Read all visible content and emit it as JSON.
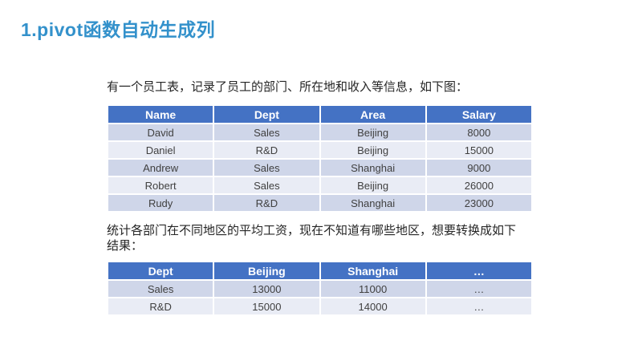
{
  "slide": {
    "title": "1.pivot函数自动生成列",
    "title_color": "#3391cb"
  },
  "intro1": {
    "text": "有一个员工表，记录了员工的部门、所在地和收入等信息，如下图："
  },
  "employee_table": {
    "headers": [
      "Name",
      "Dept",
      "Area",
      "Salary"
    ],
    "rows": [
      [
        "David",
        "Sales",
        "Beijing",
        "8000"
      ],
      [
        "Daniel",
        "R&D",
        "Beijing",
        "15000"
      ],
      [
        "Andrew",
        "Sales",
        "Shanghai",
        "9000"
      ],
      [
        "Robert",
        "Sales",
        "Beijing",
        "26000"
      ],
      [
        "Rudy",
        "R&D",
        "Shanghai",
        "23000"
      ]
    ]
  },
  "intro2": {
    "line1": "统计各部门在不同地区的平均工资，现在不知道有哪些地区，想要转换成如下",
    "line2": "结果："
  },
  "pivot_table": {
    "headers": [
      "Dept",
      "Beijing",
      "Shanghai",
      "…"
    ],
    "rows": [
      [
        "Sales",
        "13000",
        "11000",
        "…"
      ],
      [
        "R&D",
        "15000",
        "14000",
        "…"
      ]
    ]
  },
  "colors": {
    "table_header_bg": "#4472c4",
    "band_dark": "#cfd6e9",
    "band_light": "#e9ecf5",
    "grid_line": "#ffffff",
    "cell_text": "#404040",
    "body_text": "#262626"
  }
}
